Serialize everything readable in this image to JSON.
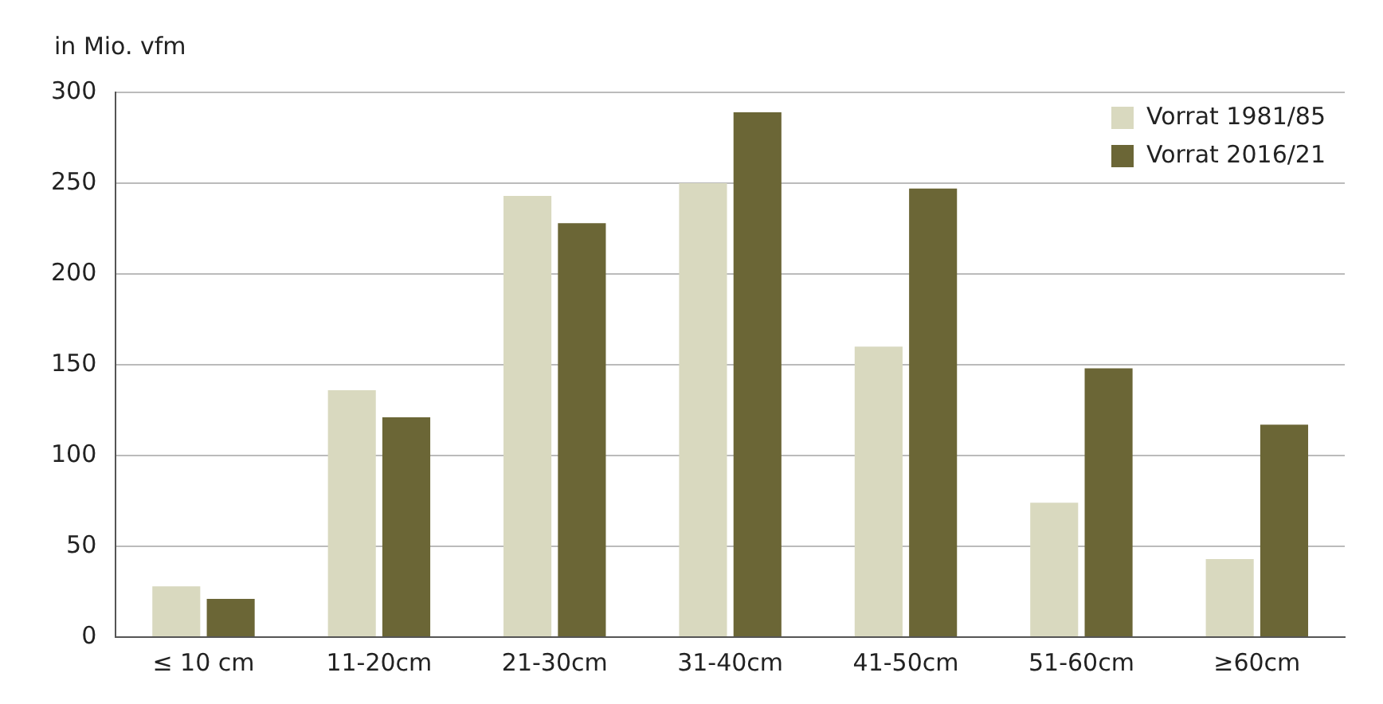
{
  "chart_data": {
    "type": "bar",
    "ylabel": "in Mio. vfm",
    "categories": [
      "≤ 10 cm",
      "11-20cm",
      "21-30cm",
      "31-40cm",
      "41-50cm",
      "51-60cm",
      "≥60cm"
    ],
    "series": [
      {
        "name": "Vorrat 1981/85",
        "color": "#d9d9bf",
        "values": [
          28,
          136,
          243,
          250,
          160,
          74,
          43
        ]
      },
      {
        "name": "Vorrat 2016/21",
        "color": "#6b6636",
        "values": [
          21,
          121,
          228,
          289,
          247,
          148,
          117
        ]
      }
    ],
    "ylim": [
      0,
      300
    ],
    "yticks": [
      0,
      50,
      100,
      150,
      200,
      250,
      300
    ],
    "grid": "y",
    "legend": "top right"
  }
}
